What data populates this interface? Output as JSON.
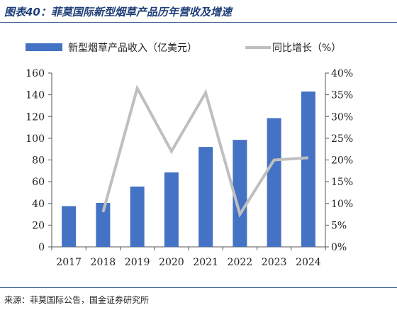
{
  "figure": {
    "title": "图表40：菲莫国际新型烟草产品历年营收及增速",
    "source": "来源：菲莫国际公告，国金证券研究所"
  },
  "colors": {
    "bar": "#4472c4",
    "line": "#bfbfbf",
    "title": "#1f3f78"
  },
  "chart_data": {
    "type": "bar",
    "categories": [
      "2017",
      "2018",
      "2019",
      "2020",
      "2021",
      "2022",
      "2023",
      "2024"
    ],
    "series": [
      {
        "name": "新型烟草产品收入（亿美元）",
        "type": "bar",
        "axis": "left",
        "values": [
          37.5,
          40.5,
          55.5,
          68.5,
          92,
          98.5,
          118.5,
          143
        ]
      },
      {
        "name": "同比增长（%）",
        "type": "line",
        "axis": "right",
        "values": [
          null,
          8.0,
          36.5,
          22.0,
          35.5,
          7.5,
          20.0,
          20.5
        ]
      }
    ],
    "y_left": {
      "min": 0,
      "max": 160,
      "ticks": [
        "0",
        "20",
        "40",
        "60",
        "80",
        "100",
        "120",
        "140",
        "160"
      ]
    },
    "y_right": {
      "min": 0,
      "max": 40,
      "ticks": [
        "0%",
        "5%",
        "10%",
        "15%",
        "20%",
        "25%",
        "30%",
        "35%",
        "40%"
      ]
    },
    "legend": [
      "新型烟草产品收入（亿美元）",
      "同比增长（%）"
    ],
    "legend_position": "top",
    "grid": false
  }
}
